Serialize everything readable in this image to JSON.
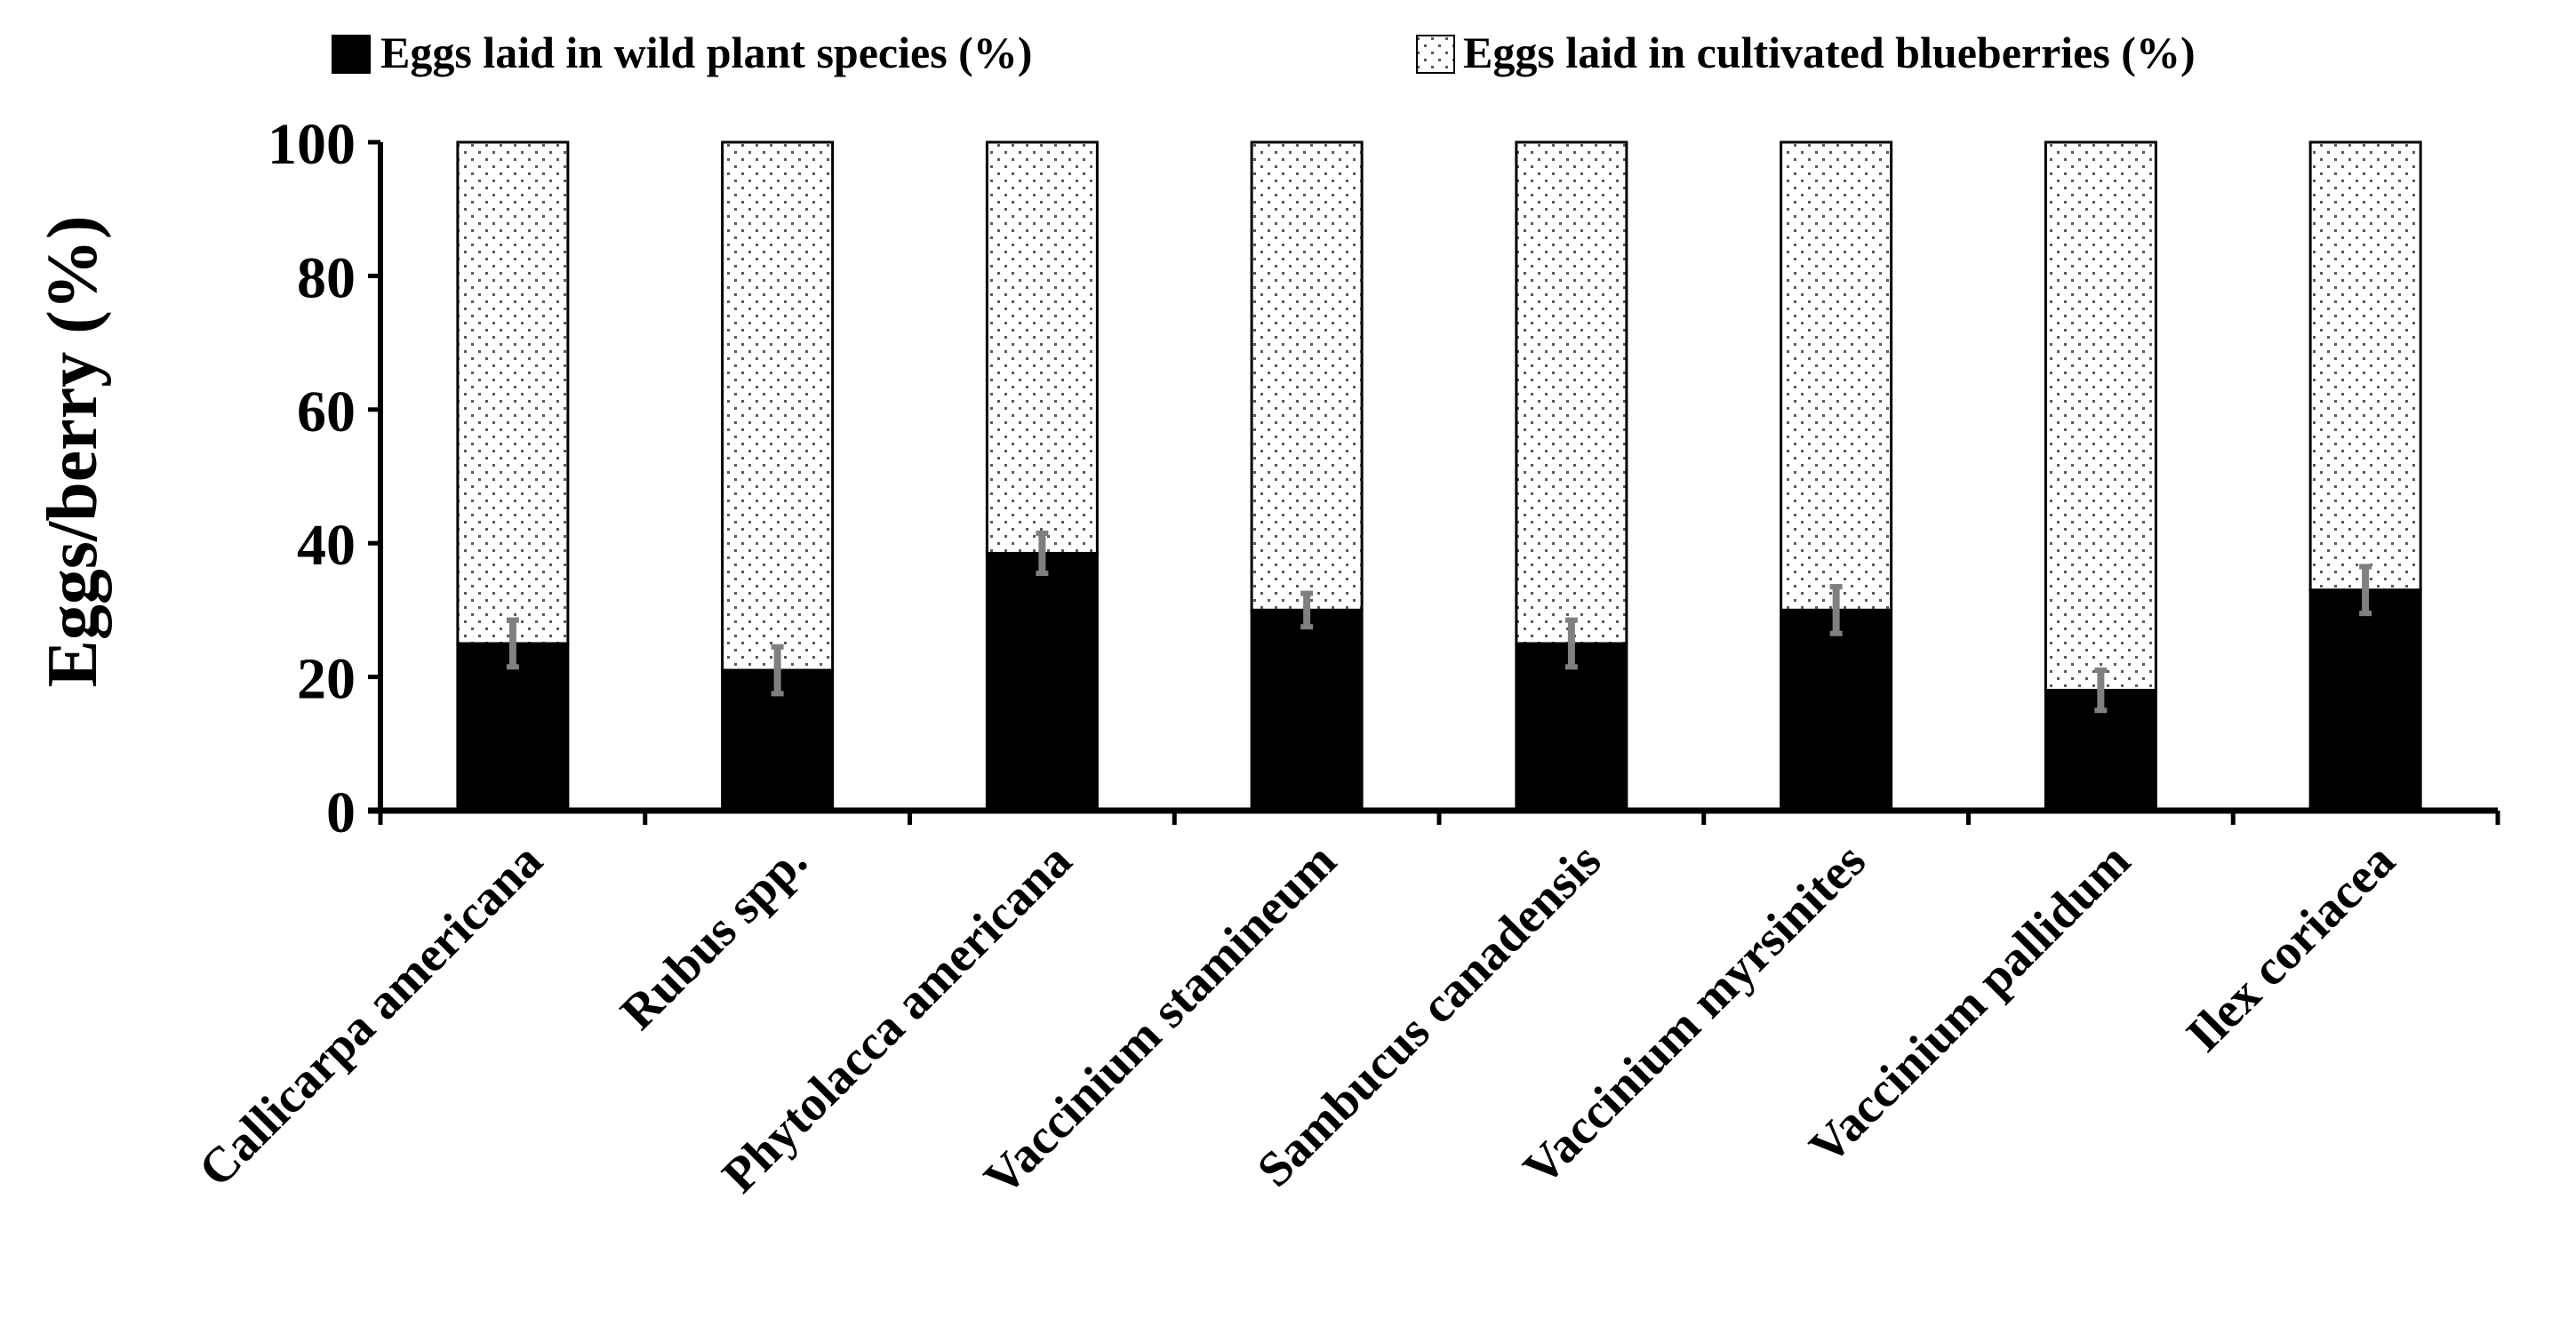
{
  "chart_data": {
    "type": "bar",
    "stacked": true,
    "title": "",
    "xlabel": "",
    "ylabel": "Eggs/berry (%)",
    "ylim": [
      0,
      100
    ],
    "yticks": [
      "0",
      "20",
      "40",
      "60",
      "80",
      "100"
    ],
    "legend_position": "top",
    "categories": [
      "Callicarpa americana",
      "Rubus spp.",
      "Phytolacca americana",
      "Vaccinium stamineum",
      "Sambucus canadensis",
      "Vaccinium myrsinites",
      "Vaccinium pallidum",
      "Ilex coriacea"
    ],
    "series": [
      {
        "name": "Eggs laid in wild plant species (%)",
        "values": [
          25,
          21,
          38.5,
          30,
          25,
          30,
          18,
          33
        ],
        "error": [
          3.5,
          3.5,
          3,
          2.5,
          3.5,
          3.5,
          3,
          3.5
        ],
        "fill": "solid",
        "color": "#000000"
      },
      {
        "name": "Eggs laid in cultivated blueberries (%)",
        "values": [
          75,
          79,
          61.5,
          70,
          75,
          70,
          82,
          67
        ],
        "fill": "dotted",
        "color": "#ffffff"
      }
    ],
    "error_bar_color": "#808080"
  }
}
